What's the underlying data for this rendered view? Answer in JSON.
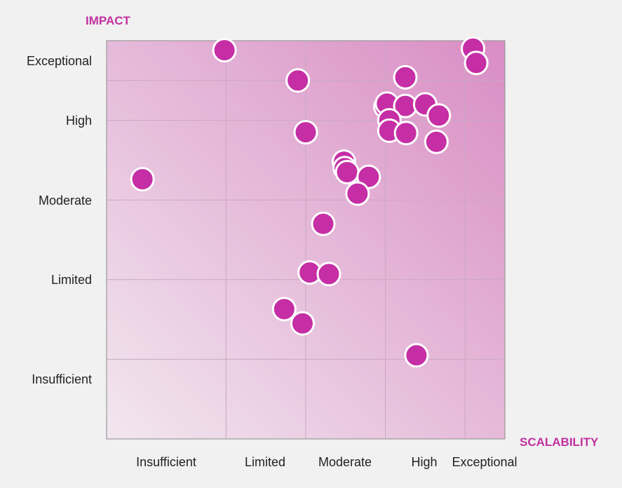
{
  "chart_data": {
    "type": "scatter",
    "x_axis_label": "SCALABILITY",
    "y_axis_label": "IMPACT",
    "x_tick_labels": [
      "Insufficient",
      "Limited",
      "Moderate",
      "High",
      "Exceptional"
    ],
    "y_tick_labels": [
      "Insufficient",
      "Limited",
      "Moderate",
      "High",
      "Exceptional"
    ],
    "xlim": [
      0,
      5
    ],
    "ylim": [
      0,
      5
    ],
    "grid": true,
    "legend": "none",
    "colors": {
      "point": "#c52ea4",
      "axis_title": "#c131a0",
      "quadrant_light": "#f2e7ef",
      "quadrant_dark": "#d98dc4",
      "background": "#f1f1f1"
    },
    "points": [
      {
        "x": 1.48,
        "y": 4.88
      },
      {
        "x": 0.45,
        "y": 3.26
      },
      {
        "x": 2.4,
        "y": 4.5
      },
      {
        "x": 2.5,
        "y": 3.85
      },
      {
        "x": 4.6,
        "y": 4.9
      },
      {
        "x": 4.64,
        "y": 4.72
      },
      {
        "x": 3.75,
        "y": 4.54
      },
      {
        "x": 3.5,
        "y": 4.17
      },
      {
        "x": 3.52,
        "y": 4.21
      },
      {
        "x": 3.75,
        "y": 4.18
      },
      {
        "x": 4.0,
        "y": 4.2
      },
      {
        "x": 4.17,
        "y": 4.06
      },
      {
        "x": 3.55,
        "y": 4.0
      },
      {
        "x": 3.55,
        "y": 3.87
      },
      {
        "x": 3.76,
        "y": 3.84
      },
      {
        "x": 4.14,
        "y": 3.73
      },
      {
        "x": 2.98,
        "y": 3.48
      },
      {
        "x": 2.99,
        "y": 3.4
      },
      {
        "x": 3.02,
        "y": 3.35
      },
      {
        "x": 3.29,
        "y": 3.29
      },
      {
        "x": 3.15,
        "y": 3.08
      },
      {
        "x": 2.72,
        "y": 2.7
      },
      {
        "x": 2.55,
        "y": 2.09
      },
      {
        "x": 2.79,
        "y": 2.07
      },
      {
        "x": 2.23,
        "y": 1.63
      },
      {
        "x": 2.46,
        "y": 1.45
      },
      {
        "x": 3.89,
        "y": 1.05
      }
    ]
  }
}
